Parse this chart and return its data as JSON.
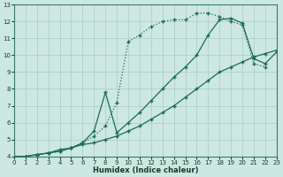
{
  "xlabel": "Humidex (Indice chaleur)",
  "xlim": [
    0,
    23
  ],
  "ylim": [
    4,
    13
  ],
  "xticks": [
    0,
    1,
    2,
    3,
    4,
    5,
    6,
    7,
    8,
    9,
    10,
    11,
    12,
    13,
    14,
    15,
    16,
    17,
    18,
    19,
    20,
    21,
    22,
    23
  ],
  "yticks": [
    4,
    5,
    6,
    7,
    8,
    9,
    10,
    11,
    12,
    13
  ],
  "bg_color": "#cce8e0",
  "grid_color": "#aaccC4",
  "line_color": "#1a6b5a",
  "line1_x": [
    0,
    1,
    2,
    3,
    4,
    5,
    6,
    7,
    8,
    9,
    10,
    11,
    12,
    13,
    14,
    15,
    16,
    17,
    18,
    19,
    20,
    21,
    22
  ],
  "line1_y": [
    4.0,
    4.0,
    4.1,
    4.2,
    4.3,
    4.5,
    4.8,
    5.2,
    5.8,
    7.2,
    10.8,
    11.2,
    11.7,
    12.0,
    12.1,
    12.1,
    12.5,
    12.5,
    12.3,
    12.0,
    11.8,
    9.5,
    9.3
  ],
  "line2_x": [
    0,
    1,
    2,
    3,
    4,
    5,
    6,
    7,
    8,
    9,
    10,
    11,
    12,
    13,
    14,
    15,
    16,
    17,
    18,
    19,
    20,
    21,
    22,
    23
  ],
  "line2_y": [
    4.0,
    4.0,
    4.1,
    4.2,
    4.4,
    4.5,
    4.8,
    5.5,
    7.8,
    5.4,
    6.0,
    6.6,
    7.3,
    8.0,
    8.7,
    9.3,
    10.0,
    11.2,
    12.1,
    12.2,
    11.9,
    9.8,
    9.5,
    10.2
  ],
  "line3_x": [
    0,
    1,
    2,
    3,
    4,
    5,
    6,
    7,
    8,
    9,
    10,
    11,
    12,
    13,
    14,
    15,
    16,
    17,
    18,
    19,
    20,
    21,
    22,
    23
  ],
  "line3_y": [
    4.0,
    4.0,
    4.1,
    4.2,
    4.3,
    4.5,
    4.7,
    4.8,
    5.0,
    5.2,
    5.5,
    5.8,
    6.2,
    6.6,
    7.0,
    7.5,
    8.0,
    8.5,
    9.0,
    9.3,
    9.6,
    9.9,
    10.1,
    10.3
  ]
}
